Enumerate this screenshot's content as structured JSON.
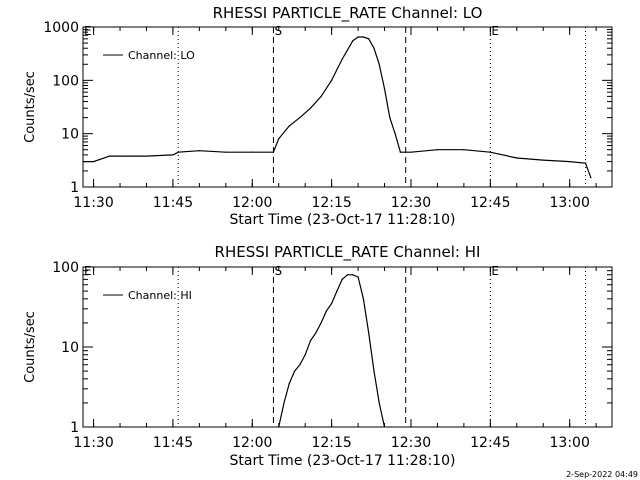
{
  "chart_data": [
    {
      "type": "line",
      "title": "RHESSI PARTICLE_RATE Channel: LO",
      "xlabel": "Start Time (23-Oct-17 11:28:10)",
      "ylabel": "Counts/sec",
      "yscale": "log",
      "ylim": [
        1,
        1000
      ],
      "xlim": [
        "11:28",
        "13:08"
      ],
      "x_tick_labels": [
        "11:30",
        "11:45",
        "12:00",
        "12:15",
        "12:30",
        "12:45",
        "13:00"
      ],
      "y_tick_labels": [
        "1",
        "10",
        "100",
        "1000"
      ],
      "legend": {
        "label": "Channel: LO",
        "position": "top-left"
      },
      "markers": [
        {
          "label": "E",
          "time": "11:28",
          "style": "dotted"
        },
        {
          "label": "",
          "time": "11:46",
          "style": "dotted"
        },
        {
          "label": "S",
          "time": "12:04",
          "style": "dashed"
        },
        {
          "label": "",
          "time": "12:29",
          "style": "dashed"
        },
        {
          "label": "E",
          "time": "12:45",
          "style": "dotted"
        },
        {
          "label": "",
          "time": "13:03",
          "style": "dotted"
        }
      ],
      "series": [
        {
          "name": "Channel: LO",
          "x": [
            "11:28",
            "11:30",
            "11:33",
            "11:36",
            "11:40",
            "11:45",
            "11:46",
            "11:50",
            "11:55",
            "12:00",
            "12:04",
            "12:05",
            "12:07",
            "12:09",
            "12:11",
            "12:13",
            "12:15",
            "12:17",
            "12:19",
            "12:20",
            "12:21",
            "12:22",
            "12:23",
            "12:24",
            "12:25",
            "12:26",
            "12:27",
            "12:28",
            "12:30",
            "12:35",
            "12:40",
            "12:45",
            "12:50",
            "12:55",
            "13:00",
            "13:03",
            "13:04"
          ],
          "y": [
            3,
            3,
            3.8,
            3.8,
            3.8,
            4,
            4.5,
            4.8,
            4.5,
            4.5,
            4.5,
            8,
            14,
            20,
            30,
            50,
            100,
            250,
            550,
            650,
            650,
            600,
            400,
            200,
            70,
            20,
            10,
            4.5,
            4.5,
            5,
            5,
            4.5,
            3.5,
            3.2,
            3,
            2.8,
            1.5
          ]
        }
      ]
    },
    {
      "type": "line",
      "title": "RHESSI PARTICLE_RATE Channel: HI",
      "xlabel": "Start Time (23-Oct-17 11:28:10)",
      "ylabel": "Counts/sec",
      "yscale": "log",
      "ylim": [
        1,
        100
      ],
      "xlim": [
        "11:28",
        "13:08"
      ],
      "x_tick_labels": [
        "11:30",
        "11:45",
        "12:00",
        "12:15",
        "12:30",
        "12:45",
        "13:00"
      ],
      "y_tick_labels": [
        "1",
        "10",
        "100"
      ],
      "legend": {
        "label": "Channel: HI",
        "position": "top-left"
      },
      "markers": [
        {
          "label": "E",
          "time": "11:28",
          "style": "dotted"
        },
        {
          "label": "",
          "time": "11:46",
          "style": "dotted"
        },
        {
          "label": "S",
          "time": "12:04",
          "style": "dashed"
        },
        {
          "label": "",
          "time": "12:29",
          "style": "dashed"
        },
        {
          "label": "E",
          "time": "12:45",
          "style": "dotted"
        },
        {
          "label": "",
          "time": "13:03",
          "style": "dotted"
        }
      ],
      "series": [
        {
          "name": "Channel: HI",
          "x": [
            "12:05",
            "12:06",
            "12:07",
            "12:08",
            "12:09",
            "12:10",
            "12:11",
            "12:12",
            "12:13",
            "12:14",
            "12:15",
            "12:16",
            "12:17",
            "12:18",
            "12:19",
            "12:20",
            "12:21",
            "12:22",
            "12:23",
            "12:24",
            "12:25"
          ],
          "y": [
            1,
            2,
            3.5,
            5,
            6,
            8,
            12,
            15,
            20,
            28,
            35,
            50,
            70,
            80,
            80,
            75,
            40,
            15,
            5,
            2,
            1
          ]
        }
      ]
    }
  ],
  "footer": {
    "timestamp": "2-Sep-2022 04:49"
  }
}
